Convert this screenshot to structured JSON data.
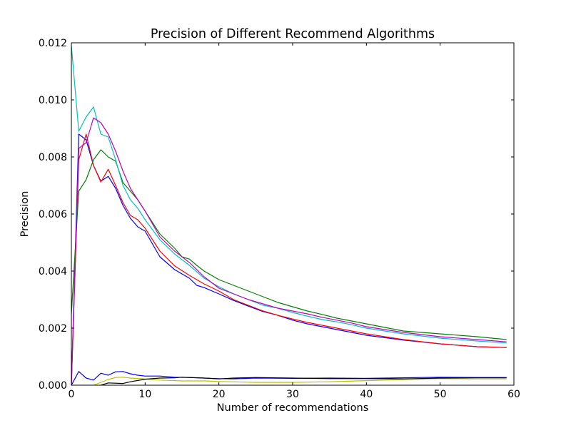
{
  "chart_data": {
    "type": "line",
    "title": "Precision of Different Recommend Algorithms",
    "xlabel": "Number of recommendations",
    "ylabel": "Precision",
    "xlim": [
      0,
      60
    ],
    "ylim": [
      0,
      0.012
    ],
    "grid": false,
    "x_ticks": [
      0,
      10,
      20,
      30,
      40,
      50,
      60
    ],
    "x_tick_labels": [
      "0",
      "10",
      "20",
      "30",
      "40",
      "50",
      "60"
    ],
    "y_ticks": [
      0,
      0.002,
      0.004,
      0.006,
      0.008,
      0.01,
      0.012
    ],
    "y_tick_labels": [
      "0.000",
      "0.002",
      "0.004",
      "0.006",
      "0.008",
      "0.010",
      "0.012"
    ],
    "series": [
      {
        "color": "#0000ff",
        "x": [
          0,
          1,
          2,
          3,
          4,
          5,
          6,
          7,
          8,
          9,
          10,
          12,
          14,
          16,
          17,
          18,
          20,
          22,
          24,
          26,
          28,
          30,
          32,
          34,
          36,
          38,
          40,
          45,
          50,
          55,
          59
        ],
        "y": [
          0,
          0.0088,
          0.0086,
          0.0077,
          0.00715,
          0.00732,
          0.0069,
          0.0063,
          0.00585,
          0.00555,
          0.0054,
          0.0045,
          0.00405,
          0.00375,
          0.0035,
          0.00342,
          0.0032,
          0.00297,
          0.00277,
          0.00258,
          0.00245,
          0.00228,
          0.00215,
          0.00205,
          0.00195,
          0.00185,
          0.00175,
          0.00158,
          0.00145,
          0.00135,
          0.00132
        ]
      },
      {
        "color": "#ff0000",
        "x": [
          0,
          1,
          2,
          3,
          4,
          5,
          6,
          7,
          8,
          9,
          10,
          12,
          14,
          16,
          18,
          20,
          22,
          24,
          26,
          28,
          30,
          32,
          34,
          36,
          38,
          40,
          45,
          50,
          55,
          59
        ],
        "y": [
          0,
          0.0079,
          0.0088,
          0.0077,
          0.00712,
          0.00757,
          0.007,
          0.0064,
          0.00595,
          0.0058,
          0.0055,
          0.0047,
          0.00418,
          0.00385,
          0.00355,
          0.0033,
          0.003,
          0.0028,
          0.0026,
          0.00245,
          0.00232,
          0.0022,
          0.0021,
          0.002,
          0.0019,
          0.0018,
          0.0016,
          0.00145,
          0.00135,
          0.00132
        ]
      },
      {
        "color": "#008000",
        "x": [
          0,
          1,
          2,
          3,
          4,
          5,
          6,
          7,
          8,
          9,
          10,
          12,
          14,
          15,
          16,
          17,
          18,
          20,
          22,
          24,
          26,
          27,
          28,
          30,
          32,
          34,
          36,
          38,
          40,
          45,
          50,
          55,
          59
        ],
        "y": [
          0.0025,
          0.0068,
          0.0072,
          0.0079,
          0.00825,
          0.008,
          0.00785,
          0.0071,
          0.0068,
          0.0065,
          0.0061,
          0.0053,
          0.0048,
          0.0045,
          0.00442,
          0.0042,
          0.004,
          0.0037,
          0.0035,
          0.0033,
          0.0031,
          0.003,
          0.0029,
          0.00275,
          0.0026,
          0.00248,
          0.00235,
          0.00225,
          0.00215,
          0.0019,
          0.0018,
          0.0017,
          0.0016
        ]
      },
      {
        "color": "#00bfbf",
        "x": [
          0,
          1,
          2,
          3,
          4,
          5,
          6,
          7,
          8,
          9,
          10,
          12,
          14,
          16,
          18,
          20,
          22,
          24,
          26,
          28,
          30,
          32,
          34,
          36,
          38,
          40,
          45,
          50,
          55,
          59
        ],
        "y": [
          0.0119,
          0.0089,
          0.0094,
          0.00975,
          0.0088,
          0.0087,
          0.0079,
          0.007,
          0.0065,
          0.0062,
          0.0058,
          0.0051,
          0.0046,
          0.0042,
          0.00375,
          0.00345,
          0.0032,
          0.003,
          0.0028,
          0.0027,
          0.00255,
          0.00242,
          0.0023,
          0.00222,
          0.00212,
          0.002,
          0.0018,
          0.00165,
          0.00155,
          0.00148
        ]
      },
      {
        "color": "#bf00bf",
        "x": [
          0,
          1,
          2,
          3,
          4,
          5,
          6,
          7,
          8,
          9,
          10,
          12,
          14,
          16,
          18,
          20,
          22,
          24,
          26,
          28,
          30,
          32,
          34,
          36,
          38,
          40,
          45,
          50,
          55,
          59
        ],
        "y": [
          0,
          0.0083,
          0.0085,
          0.00937,
          0.0092,
          0.0088,
          0.0082,
          0.0075,
          0.0069,
          0.0065,
          0.0061,
          0.0052,
          0.0047,
          0.0043,
          0.0038,
          0.0034,
          0.0032,
          0.003,
          0.00285,
          0.0027,
          0.0026,
          0.0025,
          0.00238,
          0.00228,
          0.00218,
          0.00205,
          0.00185,
          0.0017,
          0.0016,
          0.00152
        ]
      },
      {
        "color": "#0000ff",
        "x": [
          0,
          1,
          2,
          3,
          4,
          5,
          6,
          7,
          8,
          9,
          10,
          12,
          14,
          16,
          18,
          20,
          22,
          25,
          30,
          35,
          40,
          45,
          50,
          55,
          59
        ],
        "y": [
          0,
          0.00048,
          0.00025,
          0.00018,
          0.00042,
          0.00035,
          0.00047,
          0.00048,
          0.0004,
          0.00035,
          0.00032,
          0.00032,
          0.00028,
          0.00027,
          0.00025,
          0.00023,
          0.00022,
          0.00025,
          0.00024,
          0.00025,
          0.00024,
          0.00026,
          0.00028,
          0.00027,
          0.00027
        ]
      },
      {
        "color": "#bfbf00",
        "x": [
          0,
          2,
          3,
          4,
          5,
          6,
          7,
          8,
          10,
          12,
          15,
          18,
          20,
          25,
          30,
          35,
          40,
          45,
          50,
          55,
          59
        ],
        "y": [
          0,
          0,
          0,
          0.0001,
          0.0002,
          0.00027,
          0.00028,
          0.00025,
          0.00022,
          0.00018,
          0.00015,
          0.00015,
          0.00013,
          0.0001,
          0.0001,
          0.00012,
          0.00016,
          0.0002,
          0.00023,
          0.00022,
          0.00022
        ]
      },
      {
        "color": "#000000",
        "x": [
          4,
          5,
          7,
          8,
          10,
          12,
          14,
          15,
          18,
          20,
          22,
          25,
          30,
          35,
          40,
          45,
          50,
          55,
          59
        ],
        "y": [
          0,
          8e-05,
          6e-05,
          0.00012,
          0.00021,
          0.00025,
          0.00026,
          0.00028,
          0.00025,
          0.00022,
          0.00025,
          0.00027,
          0.00025,
          0.00023,
          0.00023,
          0.00022,
          0.00025,
          0.00026,
          0.00026
        ]
      }
    ]
  }
}
